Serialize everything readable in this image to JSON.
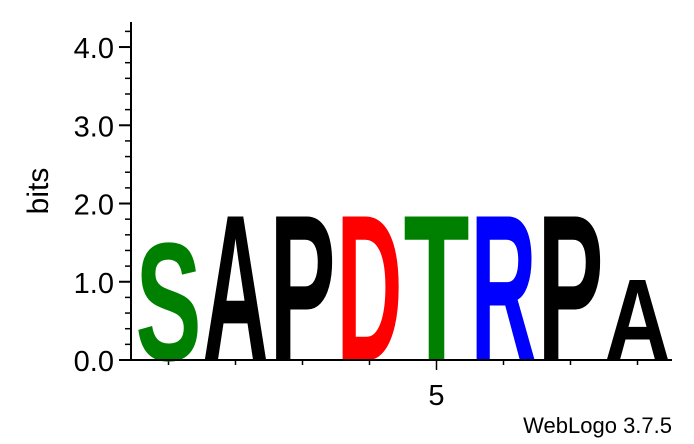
{
  "chart_data": {
    "type": "sequence-logo",
    "ylabel": "bits",
    "ylim": [
      0,
      4.32
    ],
    "yticks": [
      {
        "value": 0,
        "label": "0.0"
      },
      {
        "value": 1,
        "label": "1.0"
      },
      {
        "value": 2,
        "label": "2.0"
      },
      {
        "value": 3,
        "label": "3.0"
      },
      {
        "value": 4,
        "label": "4.0"
      }
    ],
    "xticks": [
      {
        "position": 5,
        "label": "5"
      }
    ],
    "positions": [
      {
        "position": 1,
        "letters": [
          {
            "letter": "S",
            "bits": 1.55,
            "color": "#008000"
          }
        ]
      },
      {
        "position": 2,
        "letters": [
          {
            "letter": "A",
            "bits": 1.92,
            "color": "#000000"
          }
        ]
      },
      {
        "position": 3,
        "letters": [
          {
            "letter": "P",
            "bits": 1.92,
            "color": "#000000"
          }
        ]
      },
      {
        "position": 4,
        "letters": [
          {
            "letter": "D",
            "bits": 1.92,
            "color": "#ff0000"
          }
        ]
      },
      {
        "position": 5,
        "letters": [
          {
            "letter": "T",
            "bits": 1.92,
            "color": "#008000"
          }
        ]
      },
      {
        "position": 6,
        "letters": [
          {
            "letter": "R",
            "bits": 1.92,
            "color": "#0000ff"
          }
        ]
      },
      {
        "position": 7,
        "letters": [
          {
            "letter": "P",
            "bits": 1.92,
            "color": "#000000"
          }
        ]
      },
      {
        "position": 8,
        "letters": [
          {
            "letter": "A",
            "bits": 1.07,
            "color": "#000000"
          }
        ]
      }
    ]
  },
  "credit": "WebLogo 3.7.5"
}
